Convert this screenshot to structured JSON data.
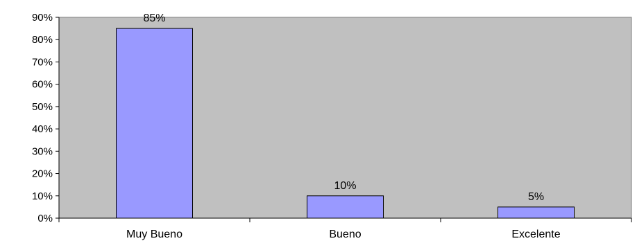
{
  "chart_data": {
    "type": "bar",
    "categories": [
      "Muy Bueno",
      "Bueno",
      "Excelente"
    ],
    "values": [
      85,
      10,
      5
    ],
    "data_labels": [
      "85%",
      "10%",
      "5%"
    ],
    "y_ticks": [
      0,
      10,
      20,
      30,
      40,
      50,
      60,
      70,
      80,
      90
    ],
    "y_tick_labels": [
      "0%",
      "10%",
      "20%",
      "30%",
      "40%",
      "50%",
      "60%",
      "70%",
      "80%",
      "90%"
    ],
    "ylim": [
      0,
      90
    ],
    "grid": false,
    "legend": "none",
    "colors": {
      "bar_fill": "#9999ff",
      "bar_stroke": "#000000",
      "plot_background": "#c0c0c0",
      "page_background": "#ffffff"
    }
  }
}
